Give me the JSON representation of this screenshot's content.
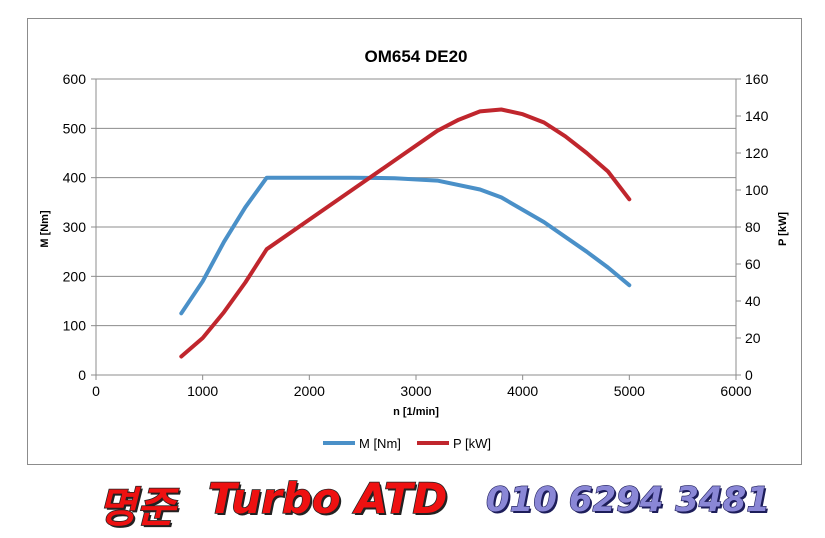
{
  "chart_data": {
    "type": "line",
    "title": "OM654 DE20",
    "xlabel": "n [1/min]",
    "ylabel_left": "M [Nm]",
    "ylabel_right": "P [kW]",
    "xlim": [
      0,
      6000
    ],
    "ylim_left": [
      0,
      600
    ],
    "ylim_right": [
      0,
      160
    ],
    "x_ticks": [
      "0",
      "1000",
      "2000",
      "3000",
      "4000",
      "5000",
      "6000"
    ],
    "y_ticks_left": [
      "0",
      "100",
      "200",
      "300",
      "400",
      "500",
      "600"
    ],
    "y_ticks_right": [
      "0",
      "20",
      "40",
      "60",
      "80",
      "100",
      "120",
      "140",
      "160"
    ],
    "grid": true,
    "legend_position": "bottom",
    "series": [
      {
        "name": "M [Nm]",
        "axis": "left",
        "color": "#4a90c8",
        "x": [
          800,
          1000,
          1200,
          1400,
          1600,
          1800,
          2000,
          2400,
          2800,
          3200,
          3600,
          3800,
          4200,
          4600,
          4800,
          5000
        ],
        "y": [
          125,
          190,
          270,
          340,
          400,
          400,
          400,
          400,
          399,
          394,
          376,
          360,
          310,
          250,
          218,
          182
        ]
      },
      {
        "name": "P [kW]",
        "axis": "right",
        "color": "#c0262d",
        "x": [
          800,
          1000,
          1200,
          1400,
          1600,
          2000,
          2400,
          2800,
          3200,
          3400,
          3600,
          3800,
          4000,
          4200,
          4400,
          4600,
          4800,
          5000
        ],
        "y": [
          10,
          20,
          34,
          50,
          68,
          84,
          100,
          116,
          132,
          138,
          142.5,
          143.5,
          141,
          136.5,
          129,
          120,
          110,
          95
        ]
      }
    ]
  },
  "watermark": {
    "name": "명준",
    "brand": "Turbo ATD",
    "phone": "010 6294 3481",
    "name_color": "#ee1111",
    "phone_color": "#8a87d6"
  }
}
